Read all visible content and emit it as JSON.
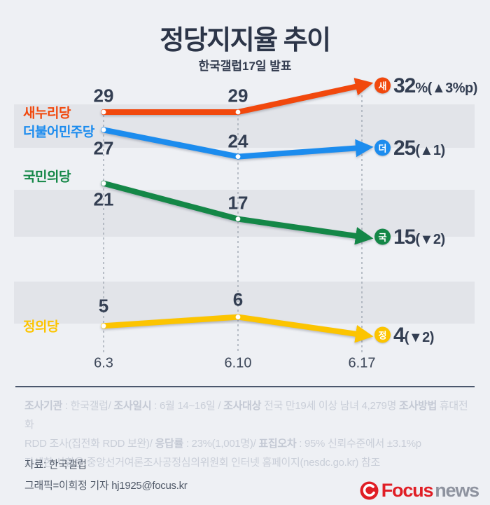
{
  "header": {
    "title": "정당지지율 추이",
    "subtitle": "한국갤럽17일 발표"
  },
  "chart_data": {
    "type": "line",
    "x": [
      "6.3",
      "6.10",
      "6.17"
    ],
    "ylim": [
      0,
      35
    ],
    "unit": "%",
    "grid": "vertical-dashed-guides",
    "legend_position": "left-inline",
    "series": [
      {
        "name": "새누리당",
        "color": "#f1480d",
        "values": [
          29,
          29,
          32
        ],
        "badge": "새",
        "end_main": "32",
        "end_suffix": "%(▲3%p)"
      },
      {
        "name": "더불어민주당",
        "color": "#1c8cee",
        "values": [
          27,
          24,
          25
        ],
        "badge": "더",
        "end_main": "25",
        "end_suffix": "(▲1)"
      },
      {
        "name": "국민의당",
        "color": "#148747",
        "values": [
          21,
          17,
          15
        ],
        "badge": "국",
        "end_main": "15",
        "end_suffix": "(▼2)"
      },
      {
        "name": "정의당",
        "color": "#fcc400",
        "values": [
          5,
          6,
          4
        ],
        "badge": "정",
        "end_main": "4",
        "end_suffix": "(▼2)"
      }
    ]
  },
  "footnote": {
    "lines": [
      {
        "segments": [
          {
            "t": "조사기관",
            "b": true
          },
          {
            "t": " : 한국갤럽/ ",
            "b": false
          },
          {
            "t": "조사일시",
            "b": true
          },
          {
            "t": " : 6월 14~16일 / ",
            "b": false
          },
          {
            "t": "조사대상",
            "b": true
          },
          {
            "t": " 전국 만19세 이상 남녀 4,279명 ",
            "b": false
          },
          {
            "t": "조사방법",
            "b": true
          },
          {
            "t": " 휴대전화",
            "b": false
          }
        ]
      },
      {
        "segments": [
          {
            "t": "RDD 조사(집전화 RDD 보완)/ ",
            "b": false
          },
          {
            "t": "응답률",
            "b": true
          },
          {
            "t": " : 23%(1,001명)/ ",
            "b": false
          },
          {
            "t": "표집오차",
            "b": true
          },
          {
            "t": " : 95% 신뢰수준에서 ±3.1%p",
            "b": false
          }
        ]
      },
      {
        "segments": [
          {
            "t": "자세한 사항은 중앙선거여론조사공정심의위원회 인터넷 홈페이지(nesdc.go.kr) 참조",
            "b": false
          }
        ]
      }
    ]
  },
  "source": {
    "label": "자료: 한국갤럽",
    "credit": "그래픽=이희정 기자 hj1925@focus.kr"
  },
  "brand": {
    "primary": "Focus",
    "secondary": "news"
  }
}
